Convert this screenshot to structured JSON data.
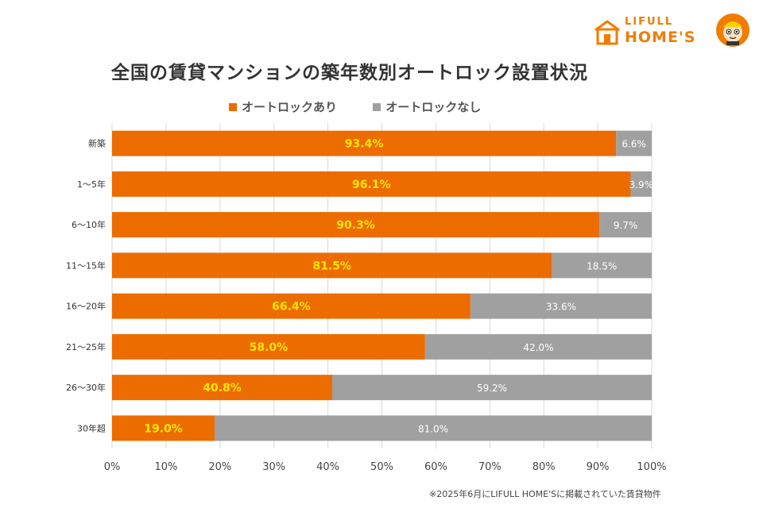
{
  "brand": {
    "name_top": "LIFULL",
    "name_bottom": "HOME'S",
    "color": "#f07c00"
  },
  "chart_data": {
    "type": "bar",
    "orientation": "horizontal",
    "stacked": true,
    "title": "全国の賃貸マンションの築年数別オートロック設置状況",
    "categories": [
      "新築",
      "1～5年",
      "6～10年",
      "11～15年",
      "16～20年",
      "21～25年",
      "26～30年",
      "30年超"
    ],
    "series": [
      {
        "name": "オートロックあり",
        "color": "#ec6c00",
        "label_color": "#ffe500",
        "values": [
          93.4,
          96.1,
          90.3,
          81.5,
          66.4,
          58.0,
          40.8,
          19.0
        ],
        "labels": [
          "93.4%",
          "96.1%",
          "90.3%",
          "81.5%",
          "66.4%",
          "58.0%",
          "40.8%",
          "19.0%"
        ]
      },
      {
        "name": "オートロックなし",
        "color": "#a0a0a0",
        "label_color": "#ffffff",
        "values": [
          6.6,
          3.9,
          9.7,
          18.5,
          33.6,
          42.0,
          59.2,
          81.0
        ],
        "labels": [
          "6.6%",
          "3.9%",
          "9.7%",
          "18.5%",
          "33.6%",
          "42.0%",
          "59.2%",
          "81.0%"
        ]
      }
    ],
    "xlim": [
      0,
      100
    ],
    "x_ticks": [
      0,
      10,
      20,
      30,
      40,
      50,
      60,
      70,
      80,
      90,
      100
    ],
    "x_tick_labels": [
      "0%",
      "10%",
      "20%",
      "30%",
      "40%",
      "50%",
      "60%",
      "70%",
      "80%",
      "90%",
      "100%"
    ],
    "grid": "vertical",
    "legend_position": "top"
  },
  "footnote": "※2025年6月にLIFULL HOME'Sに掲載されていた賃貸物件"
}
